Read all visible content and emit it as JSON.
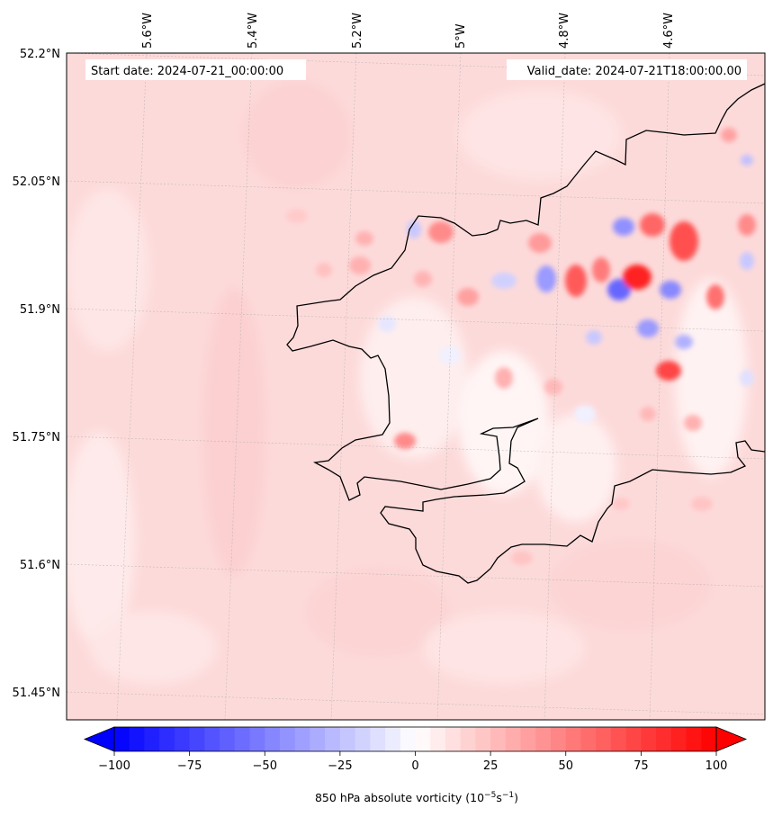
{
  "map": {
    "start_label": "Start date: 2024-07-21_00:00:00",
    "valid_label": "Valid_date: 2024-07-21T18:00:00.00",
    "lon_labels": [
      "5.6°W",
      "5.4°W",
      "5.2°W",
      "5°W",
      "4.8°W",
      "4.6°W"
    ],
    "lat_labels": [
      "52.2°N",
      "52.05°N",
      "51.9°N",
      "51.75°N",
      "51.6°N",
      "51.45°N"
    ],
    "lon_values": [
      -5.6,
      -5.4,
      -5.2,
      -5.0,
      -4.8,
      -4.6
    ],
    "lat_values": [
      52.2,
      52.05,
      51.9,
      51.75,
      51.6,
      51.45
    ]
  },
  "colorbar": {
    "min": -100,
    "max": 100,
    "ticks": [
      "−100",
      "−75",
      "−50",
      "−25",
      "0",
      "25",
      "50",
      "75",
      "100"
    ],
    "tick_values": [
      -100,
      -75,
      -50,
      -25,
      0,
      25,
      50,
      75,
      100
    ],
    "label_prefix": "850 hPa absolute vorticity (10",
    "label_exp1": "−5",
    "label_mid": "s",
    "label_exp2": "−1",
    "label_suffix": ")",
    "color_negative": "#0000ff",
    "color_zero": "#ffffff",
    "color_positive": "#ff0000"
  }
}
